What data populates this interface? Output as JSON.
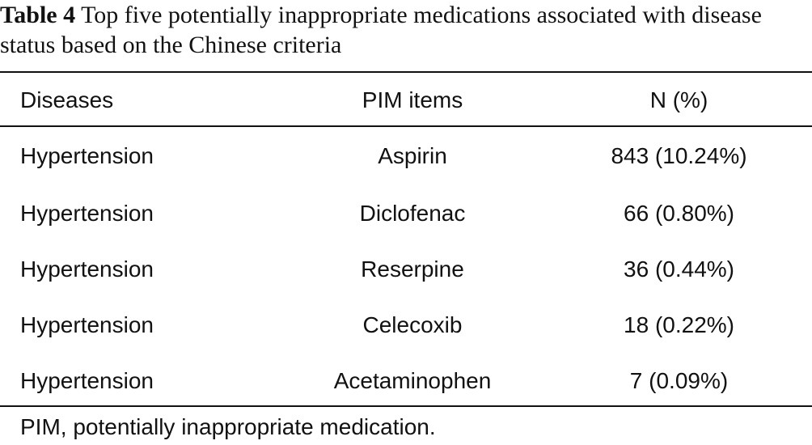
{
  "caption": {
    "label": "Table 4",
    "text": "Top five potentially inappropriate medications associated with disease status based on the Chinese criteria"
  },
  "table": {
    "headers": {
      "disease": "Diseases",
      "item": "PIM items",
      "n": "N (%)"
    },
    "rows": [
      {
        "disease": "Hypertension",
        "item": "Aspirin",
        "n": "843 (10.24%)"
      },
      {
        "disease": "Hypertension",
        "item": "Diclofenac",
        "n": "66 (0.80%)"
      },
      {
        "disease": "Hypertension",
        "item": "Reserpine",
        "n": "36 (0.44%)"
      },
      {
        "disease": "Hypertension",
        "item": "Celecoxib",
        "n": "18 (0.22%)"
      },
      {
        "disease": "Hypertension",
        "item": "Acetaminophen",
        "n": "7 (0.09%)"
      }
    ]
  },
  "footnote": "PIM, potentially inappropriate medication."
}
